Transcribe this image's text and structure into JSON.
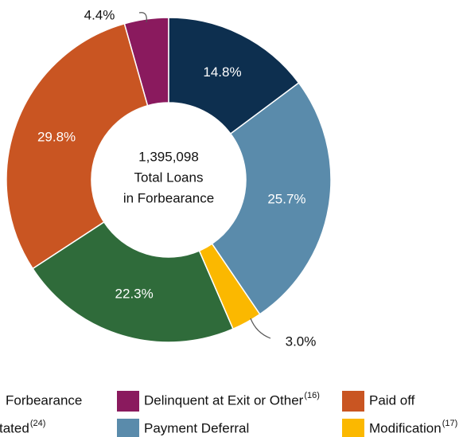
{
  "chart_data": {
    "type": "donut",
    "center_text": [
      "1,395,098",
      "Total Loans",
      "in Forbearance"
    ],
    "categories": [
      "Forbearance",
      "tated",
      "Delinquent at Exit or Other",
      "Paid off",
      "Payment Deferral",
      "Modification"
    ],
    "superscripts": [
      null,
      "(24)",
      "(16)",
      null,
      null,
      "(17)"
    ],
    "values": [
      14.8,
      22.3,
      4.4,
      29.8,
      25.7,
      3.0
    ],
    "value_labels": [
      "14.8%",
      "22.3%",
      "4.4%",
      "29.8%",
      "25.7%",
      "3.0%"
    ],
    "colors": [
      "#0d2f4f",
      "#2f6b3a",
      "#8a1a5e",
      "#c95522",
      "#5a8bab",
      "#fbb800"
    ]
  }
}
